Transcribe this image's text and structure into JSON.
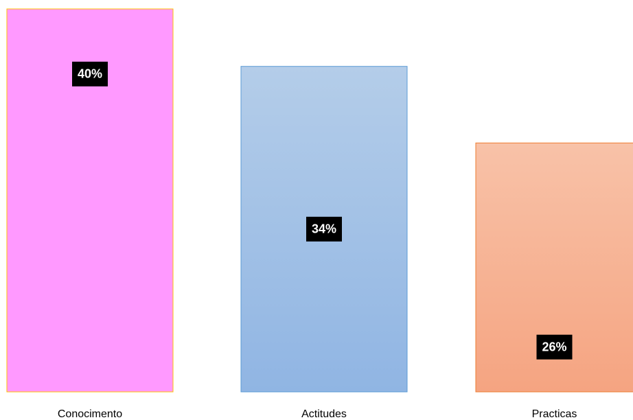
{
  "chart_data": {
    "type": "bar",
    "categories": [
      "Conocimento",
      "Actitudes",
      "Practicas"
    ],
    "values": [
      40,
      34,
      26
    ],
    "value_labels": [
      "40%",
      "34%",
      "26%"
    ],
    "colors": [
      "#ff99ff",
      "#a4c2e8",
      "#f6b493"
    ]
  }
}
